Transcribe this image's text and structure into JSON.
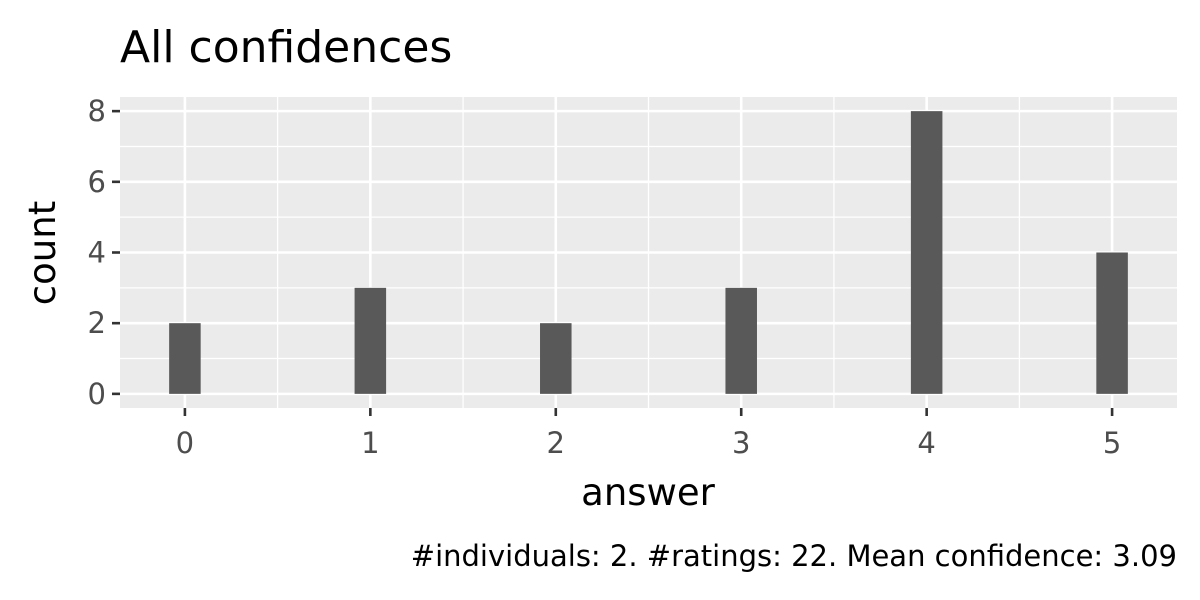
{
  "chart_data": {
    "type": "bar",
    "title": "All confidences",
    "xlabel": "answer",
    "ylabel": "count",
    "caption": "#individuals: 2. #ratings: 22. Mean confidence: 3.09",
    "categories": [
      "0",
      "1",
      "2",
      "3",
      "4",
      "5"
    ],
    "x": [
      0,
      1,
      2,
      3,
      4,
      5
    ],
    "values": [
      2,
      3,
      2,
      3,
      8,
      4
    ],
    "x_ticks": [
      "0",
      "1",
      "2",
      "3",
      "4",
      "5"
    ],
    "y_ticks": [
      "0",
      "2",
      "4",
      "6",
      "8"
    ],
    "xlim": [
      -0.35,
      5.35
    ],
    "ylim": [
      -0.4,
      8.4
    ],
    "grid": true,
    "legend": "none",
    "colors": {
      "panel_background": "#ebebeb",
      "grid": "#ffffff",
      "bar": "#595959",
      "tick_text": "#4d4d4d",
      "tick_mark": "#333333"
    }
  }
}
